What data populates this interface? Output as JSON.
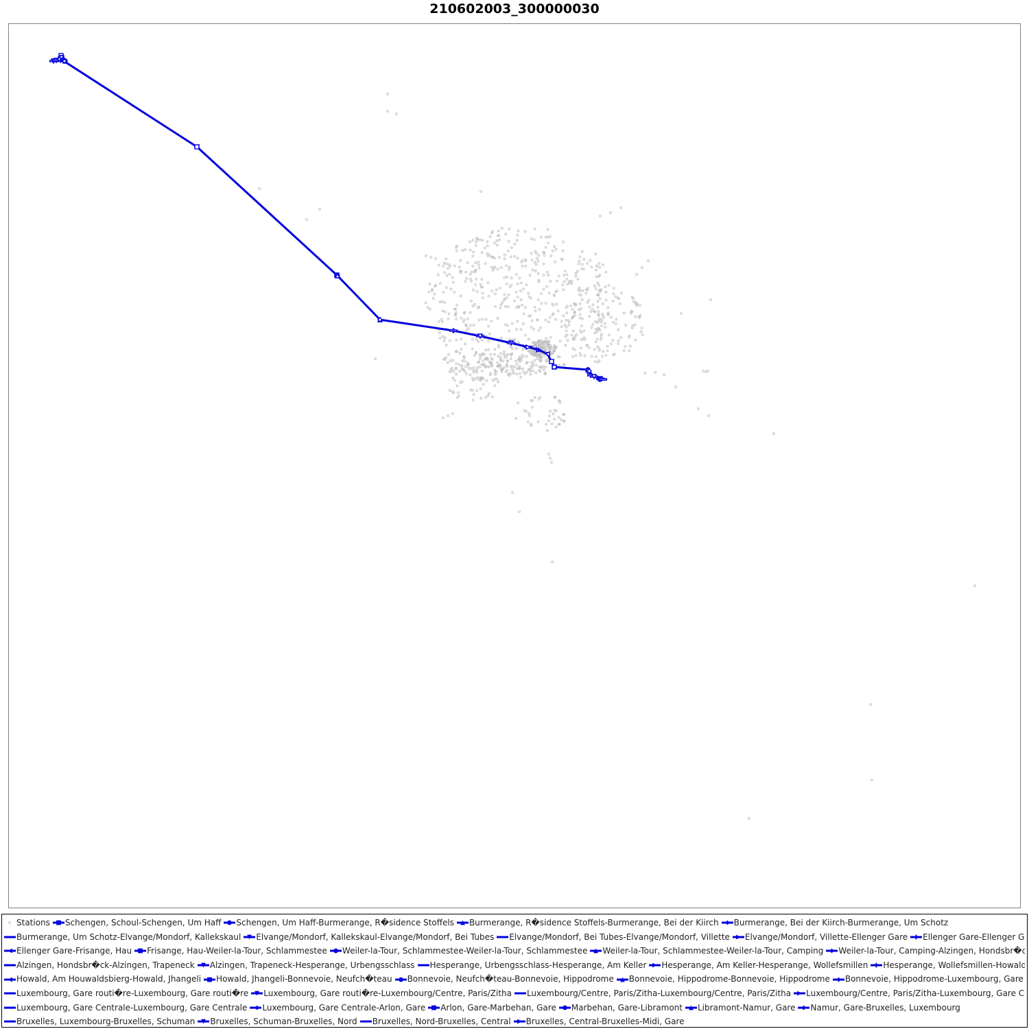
{
  "chart_data": {
    "type": "scatter",
    "title": "210602003_300000030",
    "xlabel": "",
    "ylabel": "",
    "grid": false,
    "legend_position": "bottom",
    "station_color": "#c0c0c0",
    "route_color": "#0000dd",
    "series": [
      {
        "name": "Stations",
        "kind": "points"
      },
      {
        "name": "Schengen, Schoul-Schengen, Um Haff",
        "marker": "square",
        "points": [
          [
            89,
            81
          ],
          [
            90,
            84
          ]
        ]
      },
      {
        "name": "Schengen, Um Haff-Burmerange, R�sidence Stoffels",
        "marker": "circle",
        "points": [
          [
            90,
            84
          ],
          [
            95,
            89
          ]
        ]
      },
      {
        "name": "Burmerange, R�sidence Stoffels-Burmerange, Bei der Kiirch",
        "marker": "triangle-up",
        "points": [
          [
            95,
            89
          ],
          [
            92,
            86
          ]
        ]
      },
      {
        "name": "Burmerange, Bei der Kiirch-Burmerange, Um Schotz",
        "marker": "diamond",
        "points": [
          [
            92,
            86
          ],
          [
            85,
            87
          ]
        ]
      },
      {
        "name": "Burmerange, Um Schotz-Elvange/Mondorf, Kallekskaul",
        "marker": "dash",
        "points": [
          [
            85,
            87
          ],
          [
            78,
            89
          ]
        ]
      },
      {
        "name": "Elvange/Mondorf, Kallekskaul-Elvange/Mondorf, Bei Tubes",
        "marker": "triangle-down",
        "points": [
          [
            78,
            89
          ],
          [
            82,
            88
          ]
        ]
      },
      {
        "name": "Elvange/Mondorf, Bei Tubes-Elvange/Mondorf, Villette",
        "marker": "dash",
        "points": [
          [
            82,
            88
          ],
          [
            88,
            86
          ]
        ]
      },
      {
        "name": "Elvange/Mondorf, Villette-Ellenger Gare",
        "marker": "triangle-right",
        "points": [
          [
            88,
            86
          ],
          [
            91,
            88
          ]
        ]
      },
      {
        "name": "Ellenger Gare-Ellenger Gare",
        "marker": "cross",
        "points": [
          [
            91,
            88
          ],
          [
            93,
            89
          ]
        ]
      },
      {
        "name": "Ellenger Gare-Frisange, Hau",
        "marker": "triangle-left",
        "points": [
          [
            93,
            89
          ],
          [
            287,
            214
          ]
        ]
      },
      {
        "name": "Frisange, Hau-Weiler-la-Tour, Schlammestee",
        "marker": "square",
        "points": [
          [
            287,
            214
          ],
          [
            491,
            401
          ]
        ]
      },
      {
        "name": "Weiler-la-Tour, Schlammestee-Weiler-la-Tour, Schlammestee",
        "marker": "circle",
        "points": [
          [
            491,
            401
          ],
          [
            492,
            402
          ]
        ]
      },
      {
        "name": "Weiler-la-Tour, Schlammestee-Weiler-la-Tour, Camping",
        "marker": "triangle-up",
        "points": [
          [
            492,
            402
          ],
          [
            554,
            466
          ]
        ]
      },
      {
        "name": "Weiler-la-Tour, Camping-Alzingen, Hondsbr�ck",
        "marker": "diamond",
        "points": [
          [
            554,
            466
          ],
          [
            661,
            482
          ]
        ]
      },
      {
        "name": "Alzingen, Hondsbr�ck-Alzingen, Trapeneck",
        "marker": "dash",
        "points": [
          [
            661,
            482
          ],
          [
            700,
            490
          ]
        ]
      },
      {
        "name": "Alzingen, Trapeneck-Hesperange, Urbengsschlass",
        "marker": "triangle-down",
        "points": [
          [
            700,
            490
          ],
          [
            745,
            500
          ]
        ]
      },
      {
        "name": "Hesperange, Urbengsschlass-Hesperange, Am Keller",
        "marker": "dash",
        "points": [
          [
            745,
            500
          ],
          [
            770,
            506
          ]
        ]
      },
      {
        "name": "Hesperange, Am Keller-Hesperange, Wollefsmillen",
        "marker": "triangle-right",
        "points": [
          [
            770,
            506
          ],
          [
            785,
            510
          ]
        ]
      },
      {
        "name": "Hesperange, Wollefsmillen-Howald, Am Houwaldsbierg",
        "marker": "cross",
        "points": [
          [
            785,
            510
          ],
          [
            798,
            516
          ]
        ]
      },
      {
        "name": "Howald, Am Houwaldsbierg-Howald, Jhangeli",
        "marker": "triangle-left",
        "points": [
          [
            798,
            516
          ],
          [
            804,
            527
          ]
        ]
      },
      {
        "name": "Howald, Jhangeli-Bonnevoie, Neufch�teau",
        "marker": "square",
        "points": [
          [
            804,
            527
          ],
          [
            808,
            535
          ]
        ]
      },
      {
        "name": "Bonnevoie, Neufch�teau-Bonnevoie, Hippodrome",
        "marker": "circle",
        "points": [
          [
            808,
            535
          ],
          [
            857,
            539
          ]
        ]
      },
      {
        "name": "Bonnevoie, Hippodrome-Bonnevoie, Hippodrome",
        "marker": "triangle-up",
        "points": [
          [
            857,
            539
          ],
          [
            859,
            541
          ]
        ]
      },
      {
        "name": "Bonnevoie, Hippodrome-Luxembourg, Gare routi�re",
        "marker": "diamond",
        "points": [
          [
            859,
            541
          ],
          [
            862,
            547
          ]
        ]
      },
      {
        "name": "Luxembourg, Gare routi�re-Luxembourg, Gare routi�re",
        "marker": "dash",
        "points": [
          [
            862,
            547
          ],
          [
            866,
            549
          ]
        ]
      },
      {
        "name": "Luxembourg, Gare routi�re-Luxembourg/Centre, Paris/Zitha",
        "marker": "triangle-down",
        "points": [
          [
            866,
            549
          ],
          [
            875,
            552
          ]
        ]
      },
      {
        "name": "Luxembourg/Centre, Paris/Zitha-Luxembourg/Centre, Paris/Zitha",
        "marker": "dash",
        "points": [
          [
            875,
            552
          ],
          [
            876,
            553
          ]
        ]
      },
      {
        "name": "Luxembourg/Centre, Paris/Zitha-Luxembourg, Gare Centrale",
        "marker": "triangle-right",
        "points": [
          [
            876,
            553
          ],
          [
            878,
            553
          ]
        ]
      },
      {
        "name": "Luxembourg, Gare Centrale-Luxembourg, Gare Centrale",
        "marker": "dash",
        "points": [
          [
            878,
            553
          ],
          [
            879,
            553
          ]
        ]
      },
      {
        "name": "Luxembourg, Gare Centrale-Arlon, Gare",
        "marker": "triangle-left",
        "points": []
      },
      {
        "name": "Arlon, Gare-Marbehan, Gare",
        "marker": "square",
        "points": []
      },
      {
        "name": "Marbehan, Gare-Libramont",
        "marker": "circle",
        "points": []
      },
      {
        "name": "Libramont-Namur, Gare",
        "marker": "triangle-up",
        "points": []
      },
      {
        "name": "Namur, Gare-Bruxelles, Luxembourg",
        "marker": "diamond",
        "points": []
      },
      {
        "name": "Bruxelles, Luxembourg-Bruxelles, Schuman",
        "marker": "dash",
        "points": []
      },
      {
        "name": "Bruxelles, Schuman-Bruxelles, Nord",
        "marker": "triangle-down",
        "points": []
      },
      {
        "name": "Bruxelles, Nord-Bruxelles, Central",
        "marker": "dash",
        "points": []
      },
      {
        "name": "Bruxelles, Central-Bruxelles-Midi, Gare",
        "marker": "triangle-right",
        "points": []
      }
    ],
    "stations": {
      "isolated": [
        [
          565,
          137
        ],
        [
          565,
          162
        ],
        [
          578,
          166
        ],
        [
          378,
          275
        ],
        [
          466,
          305
        ],
        [
          447,
          320
        ],
        [
          701,
          279
        ],
        [
          547,
          523
        ],
        [
          1128,
          632
        ],
        [
          1033,
          606
        ],
        [
          1018,
          596
        ],
        [
          805,
          819
        ],
        [
          1421,
          854
        ],
        [
          1269,
          1027
        ],
        [
          1271,
          1137
        ],
        [
          1092,
          1193
        ],
        [
          757,
          746
        ],
        [
          747,
          718
        ],
        [
          985,
          564
        ],
        [
          1036,
          437
        ],
        [
          993,
          457
        ]
      ],
      "arcs": [
        [
          [
            621,
            373
          ],
          [
            628,
            375
          ],
          [
            635,
            377
          ]
        ],
        [
          [
            875,
            315
          ],
          [
            890,
            310
          ],
          [
            905,
            303
          ]
        ],
        [
          [
            928,
            400
          ],
          [
            936,
            390
          ],
          [
            945,
            380
          ]
        ],
        [
          [
            646,
            609
          ],
          [
            653,
            606
          ],
          [
            660,
            603
          ]
        ],
        [
          [
            800,
            662
          ],
          [
            802,
            668
          ],
          [
            804,
            674
          ]
        ],
        [
          [
            1025,
            541
          ],
          [
            1029,
            542
          ],
          [
            1032,
            541
          ]
        ],
        [
          [
            940,
            544
          ],
          [
            955,
            543
          ],
          [
            968,
            546
          ]
        ]
      ],
      "clusters": [
        {
          "cx": 760,
          "cy": 440,
          "rx": 140,
          "ry": 110,
          "n": 520
        },
        {
          "cx": 720,
          "cy": 530,
          "rx": 80,
          "ry": 25,
          "n": 160
        },
        {
          "cx": 790,
          "cy": 508,
          "rx": 22,
          "ry": 12,
          "n": 140
        },
        {
          "cx": 880,
          "cy": 470,
          "rx": 60,
          "ry": 60,
          "n": 120
        },
        {
          "cx": 790,
          "cy": 600,
          "rx": 40,
          "ry": 30,
          "n": 40
        },
        {
          "cx": 690,
          "cy": 560,
          "rx": 40,
          "ry": 30,
          "n": 40
        }
      ]
    }
  }
}
